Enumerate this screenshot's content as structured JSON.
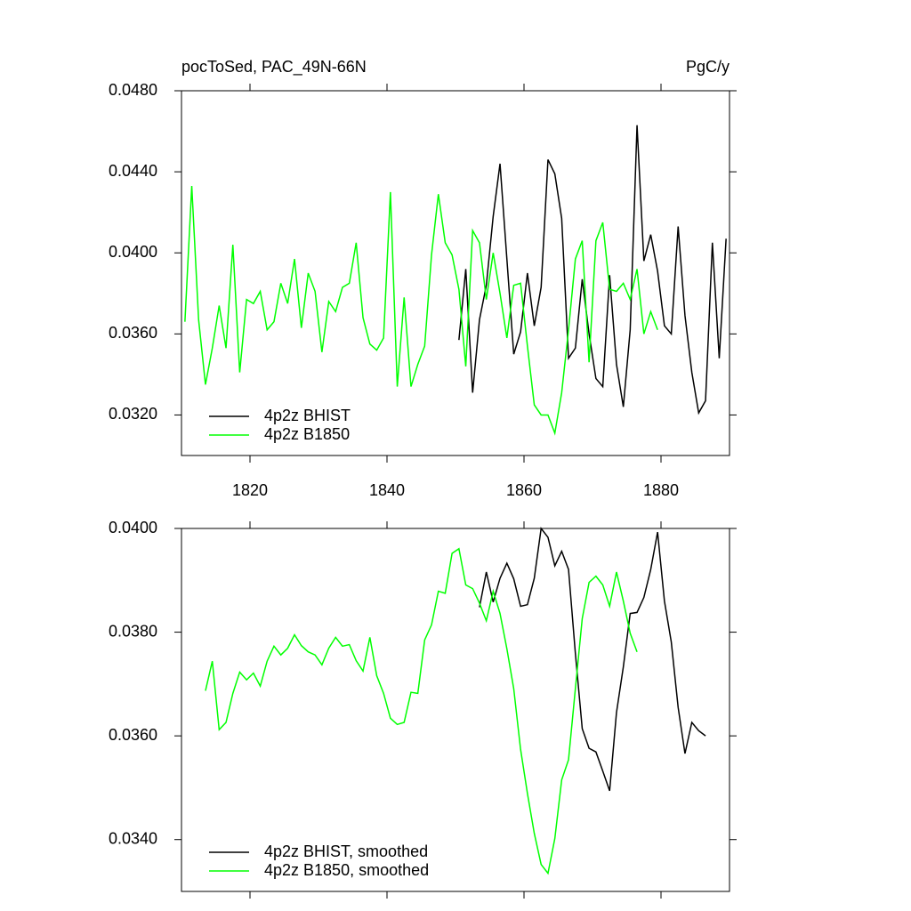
{
  "chart_data": [
    {
      "type": "line",
      "title": "pocToSed, PAC_49N-66N",
      "y_units": "PgC/y",
      "xlim": [
        1810,
        1890
      ],
      "xticks": [
        1820,
        1840,
        1860,
        1880
      ],
      "xtick_labels": true,
      "ylim": [
        0.03,
        0.048
      ],
      "yticks": [
        {
          "value": 0.032,
          "label": "0.0320"
        },
        {
          "value": 0.036,
          "label": "0.0360"
        },
        {
          "value": 0.04,
          "label": "0.0400"
        },
        {
          "value": 0.044,
          "label": "0.0440"
        },
        {
          "value": 0.048,
          "label": "0.0480"
        }
      ],
      "legend": "lower left",
      "x": [
        1810.5,
        1811.5,
        1812.5,
        1813.5,
        1814.5,
        1815.5,
        1816.5,
        1817.5,
        1818.5,
        1819.5,
        1820.5,
        1821.5,
        1822.5,
        1823.5,
        1824.5,
        1825.5,
        1826.5,
        1827.5,
        1828.5,
        1829.5,
        1830.5,
        1831.5,
        1832.5,
        1833.5,
        1834.5,
        1835.5,
        1836.5,
        1837.5,
        1838.5,
        1839.5,
        1840.5,
        1841.5,
        1842.5,
        1843.5,
        1844.5,
        1845.5,
        1846.5,
        1847.5,
        1848.5,
        1849.5,
        1850.5,
        1851.5,
        1852.5,
        1853.5,
        1854.5,
        1855.5,
        1856.5,
        1857.5,
        1858.5,
        1859.5,
        1860.5,
        1861.5,
        1862.5,
        1863.5,
        1864.5,
        1865.5,
        1866.5,
        1867.5,
        1868.5,
        1869.5,
        1870.5,
        1871.5,
        1872.5,
        1873.5,
        1874.5,
        1875.5,
        1876.5,
        1877.5,
        1878.5,
        1879.5,
        1880.5,
        1881.5,
        1882.5,
        1883.5,
        1884.5,
        1885.5,
        1886.5,
        1887.5,
        1888.5,
        1889.5
      ],
      "series": [
        {
          "name": "4p2z BHIST",
          "color": "#000000",
          "values": [
            null,
            null,
            null,
            null,
            null,
            null,
            null,
            null,
            null,
            null,
            null,
            null,
            null,
            null,
            null,
            null,
            null,
            null,
            null,
            null,
            null,
            null,
            null,
            null,
            null,
            null,
            null,
            null,
            null,
            null,
            null,
            null,
            null,
            null,
            null,
            null,
            null,
            null,
            null,
            null,
            0.0357,
            0.0392,
            0.0331,
            0.0367,
            0.0384,
            0.0418,
            0.0444,
            0.0397,
            0.035,
            0.0361,
            0.039,
            0.0364,
            0.0383,
            0.0446,
            0.0439,
            0.0417,
            0.0348,
            0.0353,
            0.0387,
            0.036,
            0.0338,
            0.0334,
            0.0389,
            0.0345,
            0.0324,
            0.0362,
            0.0463,
            0.0396,
            0.0409,
            0.0391,
            0.0364,
            0.036,
            0.0413,
            0.0369,
            0.0341,
            0.0321,
            0.0327,
            0.0405,
            0.0348,
            0.0407
          ]
        },
        {
          "name": "4p2z B1850",
          "color": "#00ff00",
          "values": [
            0.0366,
            0.0433,
            0.0367,
            0.0335,
            0.0353,
            0.0374,
            0.0353,
            0.0404,
            0.0341,
            0.0377,
            0.0375,
            0.0381,
            0.0362,
            0.0366,
            0.0385,
            0.0375,
            0.0397,
            0.0363,
            0.039,
            0.0381,
            0.0351,
            0.0376,
            0.0371,
            0.0383,
            0.0385,
            0.0405,
            0.0368,
            0.0355,
            0.0352,
            0.0358,
            0.043,
            0.0334,
            0.0378,
            0.0334,
            0.0345,
            0.0354,
            0.0399,
            0.0429,
            0.0405,
            0.0399,
            0.0382,
            0.0344,
            0.0411,
            0.0405,
            0.0377,
            0.04,
            0.038,
            0.0358,
            0.0384,
            0.0385,
            0.0354,
            0.0325,
            0.032,
            0.032,
            0.0311,
            0.0331,
            0.0362,
            0.0397,
            0.0406,
            0.0346,
            0.0406,
            0.0415,
            0.0382,
            0.0381,
            0.0385,
            0.0377,
            0.0392,
            0.036,
            0.0371,
            0.0362,
            null,
            null,
            null,
            null,
            null,
            null,
            null,
            null,
            null,
            null
          ]
        }
      ]
    },
    {
      "type": "line",
      "xlim": [
        1810,
        1890
      ],
      "xticks": [
        1820,
        1840,
        1860,
        1880
      ],
      "xtick_labels": false,
      "ylim": [
        0.033,
        0.04
      ],
      "yticks": [
        {
          "value": 0.034,
          "label": "0.0340"
        },
        {
          "value": 0.036,
          "label": "0.0360"
        },
        {
          "value": 0.038,
          "label": "0.0380"
        },
        {
          "value": 0.04,
          "label": "0.0400"
        }
      ],
      "legend": "lower left",
      "x": [
        1810.5,
        1811.5,
        1812.5,
        1813.5,
        1814.5,
        1815.5,
        1816.5,
        1817.5,
        1818.5,
        1819.5,
        1820.5,
        1821.5,
        1822.5,
        1823.5,
        1824.5,
        1825.5,
        1826.5,
        1827.5,
        1828.5,
        1829.5,
        1830.5,
        1831.5,
        1832.5,
        1833.5,
        1834.5,
        1835.5,
        1836.5,
        1837.5,
        1838.5,
        1839.5,
        1840.5,
        1841.5,
        1842.5,
        1843.5,
        1844.5,
        1845.5,
        1846.5,
        1847.5,
        1848.5,
        1849.5,
        1850.5,
        1851.5,
        1852.5,
        1853.5,
        1854.5,
        1855.5,
        1856.5,
        1857.5,
        1858.5,
        1859.5,
        1860.5,
        1861.5,
        1862.5,
        1863.5,
        1864.5,
        1865.5,
        1866.5,
        1867.5,
        1868.5,
        1869.5,
        1870.5,
        1871.5,
        1872.5,
        1873.5,
        1874.5,
        1875.5,
        1876.5,
        1877.5,
        1878.5,
        1879.5,
        1880.5,
        1881.5,
        1882.5,
        1883.5,
        1884.5,
        1885.5,
        1886.5,
        1887.5,
        1888.5,
        1889.5
      ],
      "series": [
        {
          "name": "4p2z BHIST, smoothed",
          "color": "#000000",
          "values": [
            null,
            null,
            null,
            null,
            null,
            null,
            null,
            null,
            null,
            null,
            null,
            null,
            null,
            null,
            null,
            null,
            null,
            null,
            null,
            null,
            null,
            null,
            null,
            null,
            null,
            null,
            null,
            null,
            null,
            null,
            null,
            null,
            null,
            null,
            null,
            null,
            null,
            null,
            null,
            null,
            null,
            null,
            null,
            0.03848,
            0.03916,
            0.03858,
            0.03904,
            0.03933,
            0.03903,
            0.0385,
            0.03853,
            0.03904,
            0.04,
            0.03983,
            0.03928,
            0.03956,
            0.03921,
            0.03759,
            0.03614,
            0.03576,
            0.03569,
            0.03532,
            0.03494,
            0.03645,
            0.03733,
            0.03836,
            0.03838,
            0.03867,
            0.03921,
            0.03993,
            0.0386,
            0.03781,
            0.03655,
            0.03566,
            0.03626,
            0.0361,
            0.036,
            null,
            null,
            null
          ]
        },
        {
          "name": "4p2z B1850, smoothed",
          "color": "#00ff00",
          "values": [
            null,
            null,
            null,
            0.03687,
            0.03744,
            0.03612,
            0.03626,
            0.03682,
            0.03723,
            0.03708,
            0.03721,
            0.03696,
            0.03744,
            0.03773,
            0.03756,
            0.03769,
            0.03795,
            0.03774,
            0.03762,
            0.03756,
            0.03737,
            0.03769,
            0.0379,
            0.03773,
            0.03776,
            0.03745,
            0.03725,
            0.0379,
            0.03716,
            0.03682,
            0.03634,
            0.03622,
            0.03626,
            0.03684,
            0.03682,
            0.03785,
            0.03814,
            0.03879,
            0.03875,
            0.03952,
            0.03961,
            0.03891,
            0.03884,
            0.03856,
            0.03822,
            0.03879,
            0.03836,
            0.03768,
            0.03691,
            0.03574,
            0.03489,
            0.03412,
            0.03352,
            0.03335,
            0.03402,
            0.03515,
            0.03554,
            0.03691,
            0.03826,
            0.03896,
            0.03908,
            0.03891,
            0.0385,
            0.03916,
            0.0386,
            0.03798,
            0.03762,
            null,
            null,
            null,
            null,
            null,
            null,
            null,
            null,
            null,
            null,
            null,
            null,
            null
          ]
        }
      ]
    }
  ]
}
